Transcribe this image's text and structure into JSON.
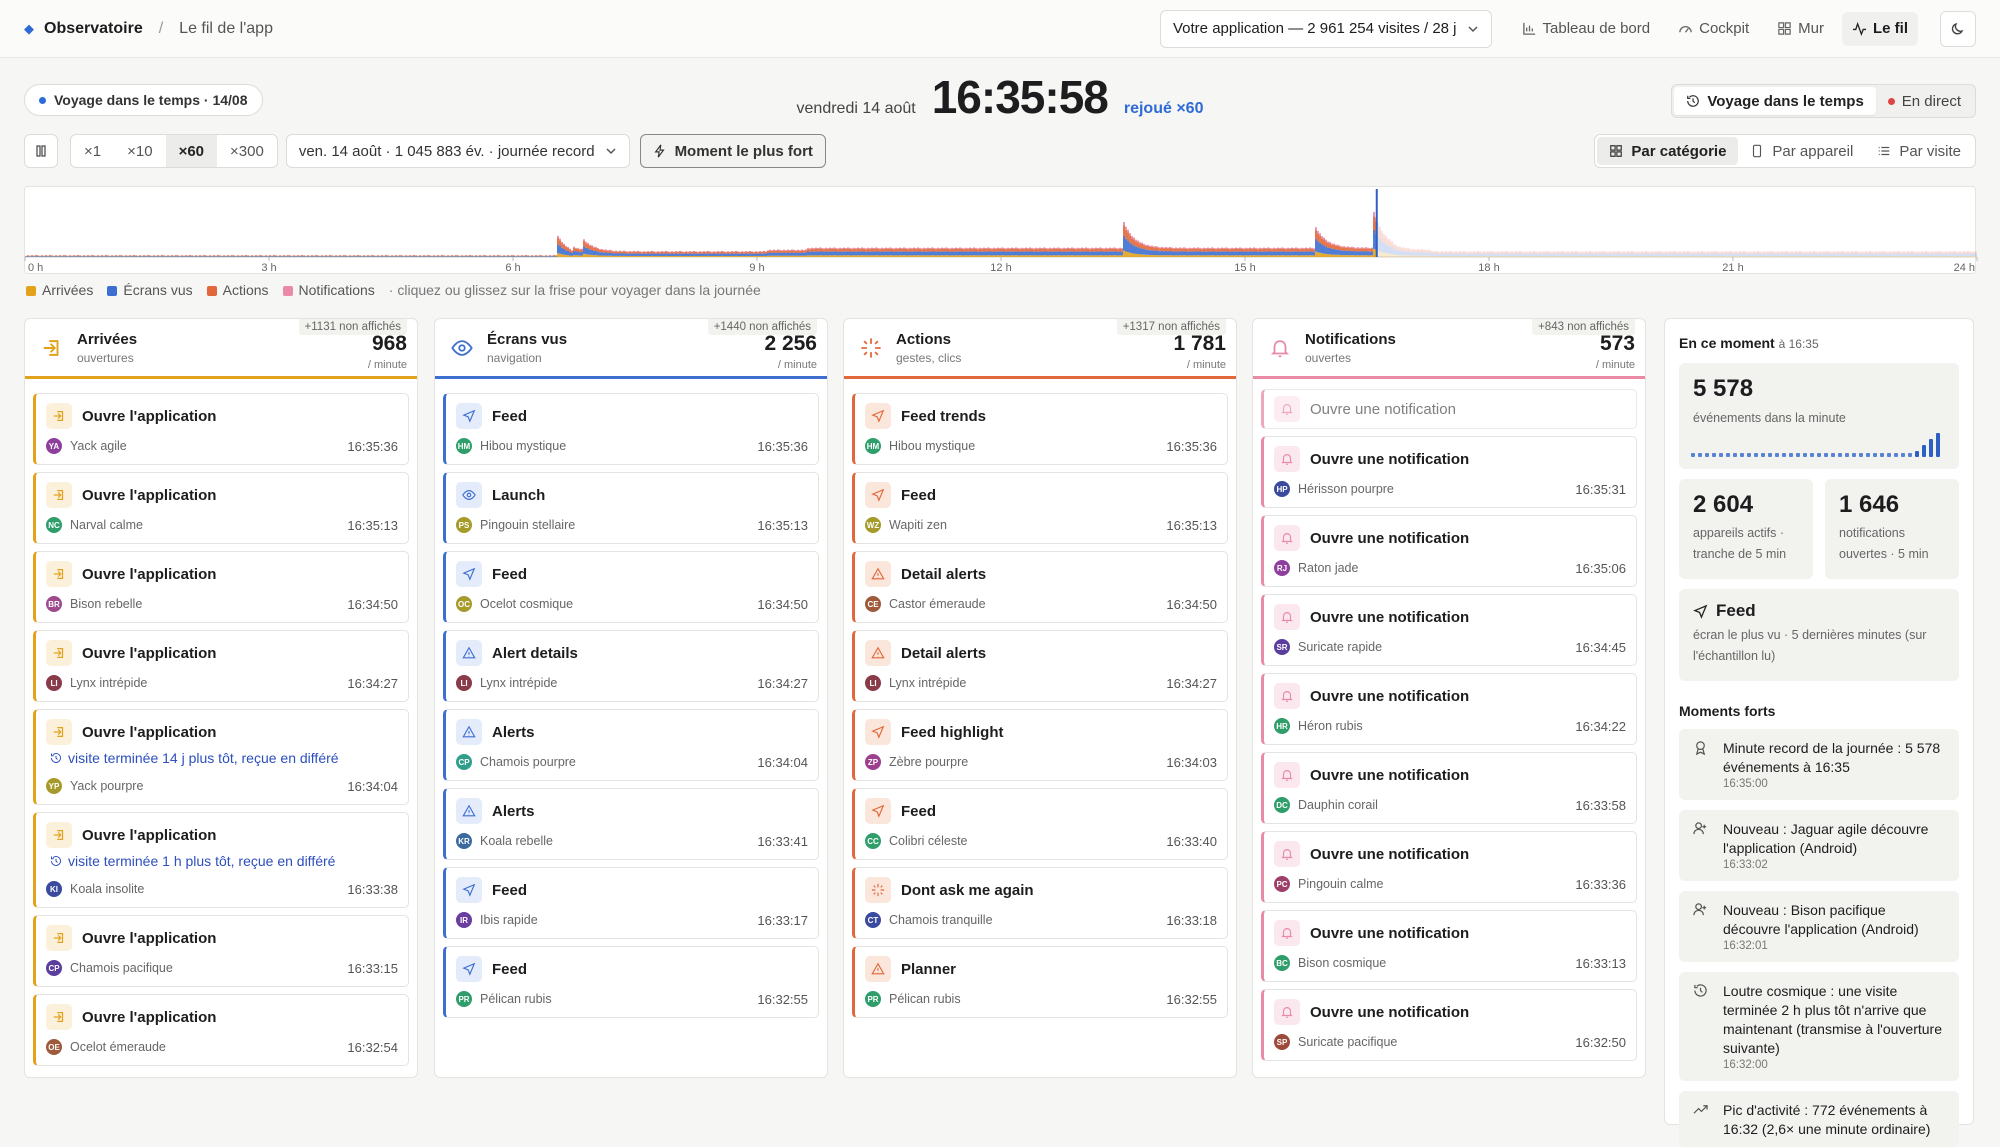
{
  "topbar": {
    "brand": "Observatoire",
    "breadcrumb": "Le fil de l'app",
    "app_selector": "Votre application — 2 961 254 visites / 28 j",
    "nav": [
      {
        "label": "Tableau de bord",
        "icon": "bar-chart-icon"
      },
      {
        "label": "Cockpit",
        "icon": "gauge-icon"
      },
      {
        "label": "Mur",
        "icon": "grid-icon"
      },
      {
        "label": "Le fil",
        "icon": "activity-icon",
        "active": true
      }
    ]
  },
  "time_travel_badge": "Voyage dans le temps · 14/08",
  "clock": {
    "date": "vendredi 14 août",
    "time": "16:35:58",
    "replay": "rejoué ×60"
  },
  "mode_switch": {
    "time_travel": "Voyage dans le temps",
    "live": "En direct"
  },
  "controls": {
    "speeds": [
      "×1",
      "×10",
      "×60",
      "×300"
    ],
    "active_speed": "×60",
    "day_select": "ven. 14 août · 1 045 883 év. · journée record",
    "peak_button": "Moment le plus fort"
  },
  "view_switch": {
    "by_category": "Par catégorie",
    "by_device": "Par appareil",
    "by_visit": "Par visite"
  },
  "timeline": {
    "hours": [
      "0 h",
      "3 h",
      "6 h",
      "9 h",
      "12 h",
      "15 h",
      "18 h",
      "21 h",
      "24 h"
    ],
    "legend": [
      {
        "label": "Arrivées",
        "color": "#e2a21c"
      },
      {
        "label": "Écrans vus",
        "color": "#3d6fd1"
      },
      {
        "label": "Actions",
        "color": "#e2673a"
      },
      {
        "label": "Notifications",
        "color": "#e98aa7"
      }
    ],
    "hint": "· cliquez ou glissez sur la frise pour voyager dans la journée"
  },
  "columns": [
    {
      "title": "Arrivées",
      "subtitle": "ouvertures",
      "hidden": "+1131 non affichés",
      "count": "968",
      "unit": "/ minute",
      "color": "#e2a21c",
      "tint": "#fbf0da",
      "icon": "enter-icon",
      "cards": [
        {
          "title": "Ouvre l'application",
          "user": "Yack agile",
          "initials": "YA",
          "avatar": "#8e3f9e",
          "time": "16:35:36"
        },
        {
          "title": "Ouvre l'application",
          "user": "Narval calme",
          "initials": "NC",
          "avatar": "#2f9e6a",
          "time": "16:35:13"
        },
        {
          "title": "Ouvre l'application",
          "user": "Bison rebelle",
          "initials": "BR",
          "avatar": "#9e4a8e",
          "time": "16:34:50"
        },
        {
          "title": "Ouvre l'application",
          "user": "Lynx intrépide",
          "initials": "LI",
          "avatar": "#8a3b4a",
          "time": "16:34:27"
        },
        {
          "title": "Ouvre l'application",
          "note": "visite terminée 14 j plus tôt, reçue en différé",
          "user": "Yack pourpre",
          "initials": "YP",
          "avatar": "#a59a2a",
          "time": "16:34:04"
        },
        {
          "title": "Ouvre l'application",
          "note": "visite terminée 1 h plus tôt, reçue en différé",
          "user": "Koala insolite",
          "initials": "KI",
          "avatar": "#3a4a9e",
          "time": "16:33:38"
        },
        {
          "title": "Ouvre l'application",
          "user": "Chamois pacifique",
          "initials": "CP",
          "avatar": "#5a3e9e",
          "time": "16:33:15"
        },
        {
          "title": "Ouvre l'application",
          "user": "Ocelot émeraude",
          "initials": "OE",
          "avatar": "#9e5a3a",
          "time": "16:32:54"
        }
      ]
    },
    {
      "title": "Écrans vus",
      "subtitle": "navigation",
      "hidden": "+1440 non affichés",
      "count": "2 256",
      "unit": "/ minute",
      "color": "#3d6fd1",
      "tint": "#e4ecfb",
      "icon": "eye-icon",
      "cards": [
        {
          "title": "Feed",
          "icon": "send-icon",
          "user": "Hibou mystique",
          "initials": "HM",
          "avatar": "#2f9e6a",
          "time": "16:35:36"
        },
        {
          "title": "Launch",
          "icon": "eye-icon",
          "user": "Pingouin stellaire",
          "initials": "PS",
          "avatar": "#a59a2a",
          "time": "16:35:13"
        },
        {
          "title": "Feed",
          "icon": "send-icon",
          "user": "Ocelot cosmique",
          "initials": "OC",
          "avatar": "#a59a2a",
          "time": "16:34:50"
        },
        {
          "title": "Alert details",
          "icon": "warning-icon",
          "user": "Lynx intrépide",
          "initials": "LI",
          "avatar": "#8a3b4a",
          "time": "16:34:27"
        },
        {
          "title": "Alerts",
          "icon": "warning-icon",
          "user": "Chamois pourpre",
          "initials": "CP",
          "avatar": "#2f9e8a",
          "time": "16:34:04"
        },
        {
          "title": "Alerts",
          "icon": "warning-icon",
          "user": "Koala rebelle",
          "initials": "KR",
          "avatar": "#3a6a9e",
          "time": "16:33:41"
        },
        {
          "title": "Feed",
          "icon": "send-icon",
          "user": "Ibis rapide",
          "initials": "IR",
          "avatar": "#6a3e9e",
          "time": "16:33:17"
        },
        {
          "title": "Feed",
          "icon": "send-icon",
          "user": "Pélican rubis",
          "initials": "PR",
          "avatar": "#2f9e6a",
          "time": "16:32:55"
        }
      ]
    },
    {
      "title": "Actions",
      "subtitle": "gestes, clics",
      "hidden": "+1317 non affichés",
      "count": "1 781",
      "unit": "/ minute",
      "color": "#e2673a",
      "tint": "#fbe6dc",
      "icon": "sparkle-icon",
      "cards": [
        {
          "title": "Feed trends",
          "icon": "send-icon",
          "user": "Hibou mystique",
          "initials": "HM",
          "avatar": "#2f9e6a",
          "time": "16:35:36"
        },
        {
          "title": "Feed",
          "icon": "send-icon",
          "user": "Wapiti zen",
          "initials": "WZ",
          "avatar": "#a59a2a",
          "time": "16:35:13"
        },
        {
          "title": "Detail alerts",
          "icon": "warning-icon",
          "user": "Castor émeraude",
          "initials": "CE",
          "avatar": "#9e5a3a",
          "time": "16:34:50"
        },
        {
          "title": "Detail alerts",
          "icon": "warning-icon",
          "user": "Lynx intrépide",
          "initials": "LI",
          "avatar": "#8a3b4a",
          "time": "16:34:27"
        },
        {
          "title": "Feed highlight",
          "icon": "send-icon",
          "user": "Zèbre pourpre",
          "initials": "ZP",
          "avatar": "#9e3f8e",
          "time": "16:34:03"
        },
        {
          "title": "Feed",
          "icon": "send-icon",
          "user": "Colibri céleste",
          "initials": "CC",
          "avatar": "#2f9e6a",
          "time": "16:33:40"
        },
        {
          "title": "Dont ask me again",
          "icon": "sparkle-icon",
          "user": "Chamois tranquille",
          "initials": "CT",
          "avatar": "#3a4a9e",
          "time": "16:33:18"
        },
        {
          "title": "Planner",
          "icon": "warning-icon",
          "user": "Pélican rubis",
          "initials": "PR",
          "avatar": "#2f9e6a",
          "time": "16:32:55"
        }
      ]
    },
    {
      "title": "Notifications",
      "subtitle": "ouvertes",
      "hidden": "+843 non affichés",
      "count": "573",
      "unit": "/ minute",
      "color": "#e98aa7",
      "tint": "#fbe7ee",
      "icon": "bell-icon",
      "mini": {
        "title": "Ouvre une notification"
      },
      "cards": [
        {
          "title": "Ouvre une notification",
          "user": "Hérisson pourpre",
          "initials": "HP",
          "avatar": "#3a4a9e",
          "time": "16:35:31"
        },
        {
          "title": "Ouvre une notification",
          "user": "Raton jade",
          "initials": "RJ",
          "avatar": "#8e3f9e",
          "time": "16:35:06"
        },
        {
          "title": "Ouvre une notification",
          "user": "Suricate rapide",
          "initials": "SR",
          "avatar": "#5a3e9e",
          "time": "16:34:45"
        },
        {
          "title": "Ouvre une notification",
          "user": "Héron rubis",
          "initials": "HR",
          "avatar": "#2f9e6a",
          "time": "16:34:22"
        },
        {
          "title": "Ouvre une notification",
          "user": "Dauphin corail",
          "initials": "DC",
          "avatar": "#2f9e6a",
          "time": "16:33:58"
        },
        {
          "title": "Ouvre une notification",
          "user": "Pingouin calme",
          "initials": "PC",
          "avatar": "#9e3f6a",
          "time": "16:33:36"
        },
        {
          "title": "Ouvre une notification",
          "user": "Bison cosmique",
          "initials": "BC",
          "avatar": "#2f9e6a",
          "time": "16:33:13"
        },
        {
          "title": "Ouvre une notification",
          "user": "Suricate pacifique",
          "initials": "SP",
          "avatar": "#9e4a3a",
          "time": "16:32:50"
        }
      ]
    }
  ],
  "side": {
    "title": "En ce moment",
    "at": "à 16:35",
    "events": {
      "value": "5 578",
      "label": "événements dans la minute",
      "sparkline": [
        2,
        2,
        2,
        2,
        2,
        2,
        2,
        2,
        2,
        2,
        2,
        2,
        2,
        2,
        2,
        2,
        2,
        2,
        2,
        2,
        2,
        2,
        2,
        2,
        2,
        2,
        2,
        2,
        2,
        2,
        2,
        2,
        3,
        6,
        9,
        12
      ]
    },
    "devices": {
      "value": "2 604",
      "label": "appareils actifs · tranche de 5 min"
    },
    "notifications": {
      "value": "1 646",
      "label": "notifications ouvertes · 5 min"
    },
    "top_screen": {
      "title": "Feed",
      "label": "écran le plus vu · 5 dernières minutes (sur l'échantillon lu)"
    },
    "moments_title": "Moments forts",
    "moments": [
      {
        "icon": "medal-icon",
        "text": "Minute record de la journée : 5 578 événements à 16:35",
        "time": "16:35:00"
      },
      {
        "icon": "user-plus-icon",
        "text": "Nouveau : Jaguar agile découvre l'application (Android)",
        "time": "16:33:02"
      },
      {
        "icon": "user-plus-icon",
        "text": "Nouveau : Bison pacifique découvre l'application (Android)",
        "time": "16:32:01"
      },
      {
        "icon": "history-icon",
        "text": "Loutre cosmique : une visite terminée 2 h plus tôt n'arrive que maintenant (transmise à l'ouverture suivante)",
        "time": "16:32:00"
      },
      {
        "icon": "trend-icon",
        "text": "Pic d'activité : 772 événements à 16:32 (2,6× une minute ordinaire)",
        "time": ""
      }
    ]
  }
}
